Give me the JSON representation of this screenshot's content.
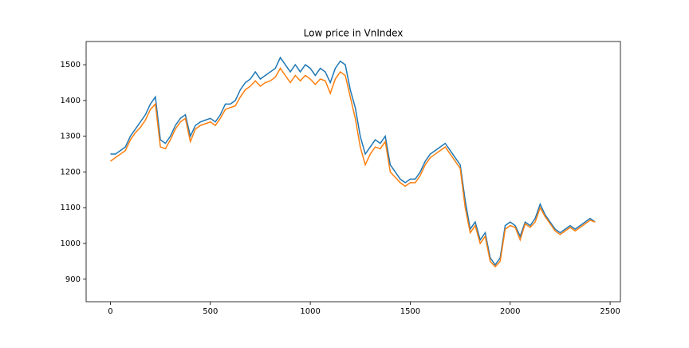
{
  "chart_data": {
    "type": "line",
    "title": "Low price in VnIndex",
    "x": [
      0,
      25,
      50,
      75,
      100,
      125,
      150,
      175,
      200,
      225,
      250,
      275,
      300,
      325,
      350,
      375,
      400,
      425,
      450,
      475,
      500,
      525,
      550,
      575,
      600,
      625,
      650,
      675,
      700,
      725,
      750,
      775,
      800,
      825,
      850,
      875,
      900,
      925,
      950,
      975,
      1000,
      1025,
      1050,
      1075,
      1100,
      1125,
      1150,
      1175,
      1200,
      1225,
      1250,
      1275,
      1300,
      1325,
      1350,
      1375,
      1400,
      1425,
      1450,
      1475,
      1500,
      1525,
      1550,
      1575,
      1600,
      1625,
      1650,
      1675,
      1700,
      1725,
      1750,
      1775,
      1800,
      1825,
      1850,
      1875,
      1900,
      1925,
      1950,
      1975,
      2000,
      2025,
      2050,
      2075,
      2100,
      2125,
      2150,
      2175,
      2200,
      2225,
      2250,
      2275,
      2300,
      2325,
      2350,
      2375,
      2400,
      2425
    ],
    "series": [
      {
        "color": "#1f77b4",
        "values": [
          1250,
          1250,
          1260,
          1270,
          1300,
          1320,
          1340,
          1360,
          1390,
          1410,
          1290,
          1280,
          1300,
          1330,
          1350,
          1360,
          1300,
          1330,
          1340,
          1345,
          1350,
          1340,
          1360,
          1390,
          1390,
          1400,
          1430,
          1450,
          1460,
          1480,
          1460,
          1470,
          1480,
          1490,
          1520,
          1500,
          1480,
          1500,
          1480,
          1500,
          1490,
          1470,
          1490,
          1480,
          1450,
          1490,
          1510,
          1500,
          1430,
          1380,
          1300,
          1250,
          1270,
          1290,
          1280,
          1300,
          1220,
          1200,
          1180,
          1170,
          1180,
          1180,
          1200,
          1230,
          1250,
          1260,
          1270,
          1280,
          1260,
          1240,
          1220,
          1120,
          1040,
          1060,
          1010,
          1030,
          960,
          940,
          960,
          1050,
          1060,
          1050,
          1020,
          1060,
          1050,
          1070,
          1110,
          1080,
          1060,
          1040,
          1030,
          1040,
          1050,
          1040,
          1050,
          1060,
          1070,
          1060
        ]
      },
      {
        "color": "#ff7f0e",
        "values": [
          1230,
          1240,
          1250,
          1260,
          1290,
          1310,
          1325,
          1345,
          1375,
          1390,
          1270,
          1265,
          1290,
          1320,
          1340,
          1350,
          1285,
          1320,
          1330,
          1335,
          1340,
          1330,
          1350,
          1375,
          1380,
          1385,
          1410,
          1430,
          1440,
          1455,
          1440,
          1450,
          1455,
          1465,
          1490,
          1470,
          1450,
          1470,
          1455,
          1470,
          1460,
          1445,
          1460,
          1455,
          1420,
          1460,
          1480,
          1470,
          1410,
          1350,
          1270,
          1220,
          1250,
          1270,
          1265,
          1285,
          1200,
          1185,
          1170,
          1160,
          1170,
          1170,
          1190,
          1220,
          1240,
          1250,
          1260,
          1270,
          1250,
          1230,
          1210,
          1100,
          1030,
          1050,
          1000,
          1020,
          950,
          935,
          950,
          1040,
          1050,
          1045,
          1010,
          1055,
          1045,
          1060,
          1100,
          1075,
          1055,
          1035,
          1025,
          1035,
          1045,
          1035,
          1045,
          1055,
          1065,
          1060
        ]
      }
    ],
    "xlim": [
      -121.5,
      2551.5
    ],
    "xticks": [
      0,
      500,
      1000,
      1500,
      2000,
      2500
    ],
    "ylim": [
      837,
      1565
    ],
    "yticks": [
      900,
      1000,
      1100,
      1200,
      1300,
      1400,
      1500
    ],
    "grid": false
  }
}
